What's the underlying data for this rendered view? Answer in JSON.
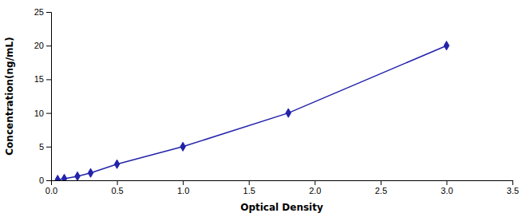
{
  "chart_data": {
    "type": "line",
    "x": [
      0.05,
      0.1,
      0.2,
      0.3,
      0.5,
      1.0,
      1.8,
      3.0
    ],
    "values": [
      0.1,
      0.25,
      0.6,
      1.1,
      2.4,
      5.0,
      10.0,
      20.0
    ],
    "color": "#2222aa",
    "marker": "diamond",
    "xlabel": "Optical Density",
    "ylabel": "Concentration(ng/mL)",
    "xlim": [
      0,
      3.5
    ],
    "ylim": [
      0,
      25
    ],
    "xticks": [
      {
        "value": 0,
        "label": "0.0"
      },
      0.5,
      {
        "value": 1,
        "label": "1.0"
      },
      1.5,
      {
        "value": 2,
        "label": "2.0"
      },
      2.5,
      {
        "value": 3,
        "label": "3.0"
      },
      3.5
    ],
    "yticks": [
      0,
      5,
      10,
      15,
      20,
      25
    ]
  }
}
